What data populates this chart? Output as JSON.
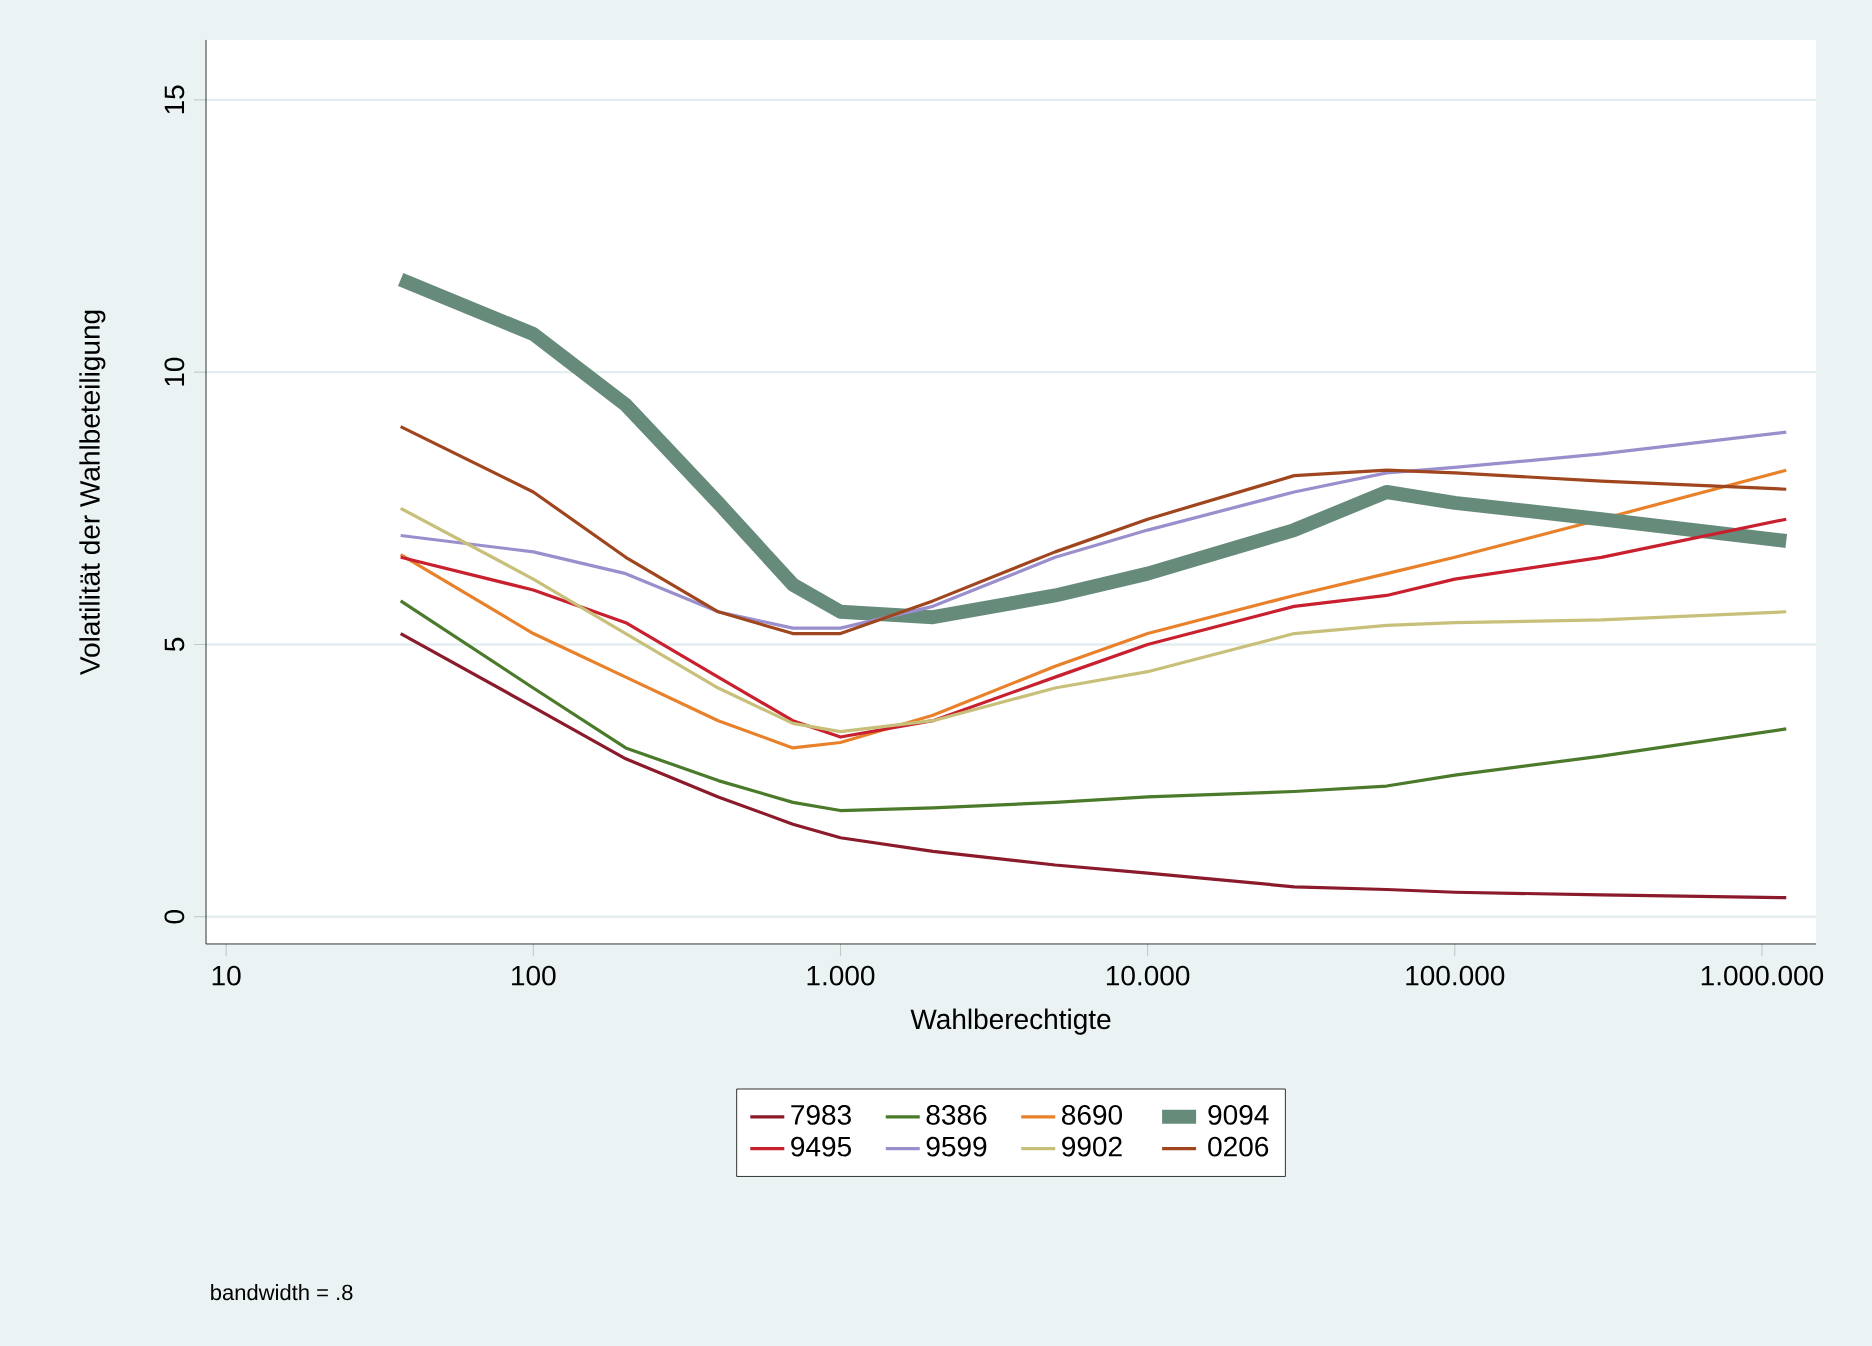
{
  "chart_data": {
    "type": "line",
    "xlabel": "Wahlberechtigte",
    "ylabel": "Volatilität der Wahlbeteiligung",
    "annotations": [
      "bandwidth = .8"
    ],
    "log": "x",
    "grid": "y",
    "legend": "bottom",
    "line_style": "solid",
    "xlim": [
      8.6,
      1500000
    ],
    "ylim": [
      -0.5,
      16.1
    ],
    "xticks": [
      10,
      100,
      {
        "value": 1000,
        "label": "1.000"
      },
      {
        "value": 10000,
        "label": "10.000"
      },
      {
        "value": 100000,
        "label": "100.000"
      },
      {
        "value": 1000000,
        "label": "1.000.000"
      }
    ],
    "yticks": [
      0,
      5,
      10,
      15
    ],
    "x": [
      37,
      100,
      200,
      400,
      700,
      1000,
      2000,
      5000,
      10000,
      30000,
      60000,
      100000,
      300000,
      1200000
    ],
    "series": [
      {
        "name": "7983",
        "color": "#8b1a2b",
        "values": [
          5.2,
          3.85,
          2.9,
          2.2,
          1.7,
          1.45,
          1.2,
          0.95,
          0.8,
          0.55,
          0.5,
          0.45,
          0.4,
          0.35
        ]
      },
      {
        "name": "8386",
        "color": "#4b7a2b",
        "values": [
          5.8,
          4.2,
          3.1,
          2.5,
          2.1,
          1.95,
          2.0,
          2.1,
          2.2,
          2.3,
          2.4,
          2.6,
          2.95,
          3.45
        ]
      },
      {
        "name": "8690",
        "color": "#e8812a",
        "values": [
          6.65,
          5.2,
          4.4,
          3.6,
          3.1,
          3.2,
          3.7,
          4.6,
          5.2,
          5.9,
          6.3,
          6.6,
          7.3,
          8.2
        ]
      },
      {
        "name": "9094",
        "color": "#678b7b",
        "values": [
          11.7,
          10.7,
          9.4,
          7.6,
          6.1,
          5.6,
          5.5,
          5.9,
          6.3,
          7.1,
          7.8,
          7.6,
          7.3,
          6.9
        ]
      },
      {
        "name": "9495",
        "color": "#c8202f",
        "values": [
          6.6,
          6.0,
          5.4,
          4.4,
          3.6,
          3.3,
          3.6,
          4.4,
          5.0,
          5.7,
          5.9,
          6.2,
          6.6,
          7.3
        ]
      },
      {
        "name": "9599",
        "color": "#9a8fcc",
        "values": [
          7.0,
          6.7,
          6.3,
          5.6,
          5.3,
          5.3,
          5.7,
          6.6,
          7.1,
          7.8,
          8.15,
          8.25,
          8.5,
          8.9
        ]
      },
      {
        "name": "9902",
        "color": "#c8c07a",
        "values": [
          7.5,
          6.2,
          5.2,
          4.2,
          3.55,
          3.4,
          3.6,
          4.2,
          4.5,
          5.2,
          5.35,
          5.4,
          5.45,
          5.6
        ]
      },
      {
        "name": "0206",
        "color": "#a0461e",
        "values": [
          9.0,
          7.8,
          6.6,
          5.6,
          5.2,
          5.2,
          5.8,
          6.7,
          7.3,
          8.1,
          8.2,
          8.15,
          8.0,
          7.85
        ]
      }
    ]
  }
}
